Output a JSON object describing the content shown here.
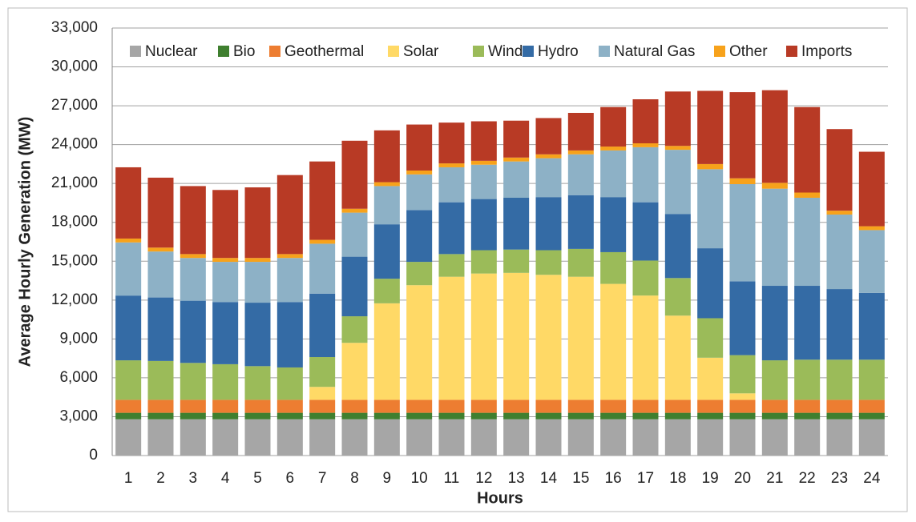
{
  "chart_data": {
    "type": "stacked_bar",
    "x_label": "Hours",
    "y_label": "Average Hourly Generation (MW)",
    "categories": [
      "1",
      "2",
      "3",
      "4",
      "5",
      "6",
      "7",
      "8",
      "9",
      "10",
      "11",
      "12",
      "13",
      "14",
      "15",
      "16",
      "17",
      "18",
      "19",
      "20",
      "21",
      "22",
      "23",
      "24"
    ],
    "ylim": [
      0,
      33000
    ],
    "yticks": [
      0,
      {
        "value": 3000,
        "label": "3,000"
      },
      {
        "value": 6000,
        "label": "6,000"
      },
      {
        "value": 9000,
        "label": "9,000"
      },
      {
        "value": 12000,
        "label": "12,000"
      },
      {
        "value": 15000,
        "label": "15,000"
      },
      {
        "value": 18000,
        "label": "18,000"
      },
      {
        "value": 21000,
        "label": "21,000"
      },
      {
        "value": 24000,
        "label": "24,000"
      },
      {
        "value": 27000,
        "label": "27,000"
      },
      {
        "value": 30000,
        "label": "30,000"
      },
      {
        "value": 33000,
        "label": "33,000"
      }
    ],
    "grid": true,
    "legend": "top",
    "series": [
      {
        "name": "Nuclear",
        "color": "#a6a6a6",
        "values": [
          2800,
          2800,
          2800,
          2800,
          2800,
          2800,
          2800,
          2800,
          2800,
          2800,
          2800,
          2800,
          2800,
          2800,
          2800,
          2800,
          2800,
          2800,
          2800,
          2800,
          2800,
          2800,
          2800,
          2800
        ]
      },
      {
        "name": "Bio",
        "color": "#3f7f2f",
        "values": [
          500,
          500,
          500,
          500,
          500,
          500,
          500,
          500,
          500,
          500,
          500,
          500,
          500,
          500,
          500,
          500,
          500,
          500,
          500,
          500,
          500,
          500,
          500,
          500
        ]
      },
      {
        "name": "Geothermal",
        "color": "#ed7d31",
        "values": [
          1000,
          1000,
          1000,
          1000,
          1000,
          1000,
          1000,
          1000,
          1000,
          1000,
          1000,
          1000,
          1000,
          1000,
          1000,
          1000,
          1000,
          1000,
          1000,
          1000,
          1000,
          1000,
          1000,
          1000
        ]
      },
      {
        "name": "Solar",
        "color": "#ffd966",
        "values": [
          0,
          0,
          0,
          0,
          0,
          0,
          1000,
          4400,
          7450,
          8850,
          9500,
          9750,
          9800,
          9650,
          9500,
          8950,
          8050,
          6500,
          3250,
          500,
          0,
          0,
          0,
          0
        ]
      },
      {
        "name": "Wind",
        "color": "#9bbb59",
        "values": [
          3050,
          3000,
          2850,
          2750,
          2600,
          2500,
          2300,
          2050,
          1900,
          1800,
          1750,
          1800,
          1800,
          1900,
          2150,
          2450,
          2700,
          2900,
          3050,
          2950,
          3050,
          3100,
          3100,
          3100
        ]
      },
      {
        "name": "Hydro",
        "color": "#346ba5",
        "values": [
          5000,
          4900,
          4800,
          4800,
          4900,
          5050,
          4900,
          4600,
          4200,
          4000,
          4000,
          3950,
          4000,
          4100,
          4150,
          4250,
          4500,
          4950,
          5400,
          5700,
          5750,
          5700,
          5450,
          5150
        ]
      },
      {
        "name": "Natural Gas",
        "color": "#8db1c6",
        "values": [
          4100,
          3550,
          3300,
          3100,
          3150,
          3400,
          3850,
          3400,
          2950,
          2750,
          2700,
          2650,
          2800,
          3000,
          3150,
          3600,
          4250,
          4950,
          6100,
          7500,
          7500,
          6800,
          5750,
          4850
        ]
      },
      {
        "name": "Other",
        "color": "#f7a21b",
        "values": [
          300,
          300,
          300,
          300,
          300,
          300,
          300,
          300,
          300,
          300,
          300,
          300,
          300,
          300,
          300,
          300,
          300,
          300,
          400,
          450,
          450,
          400,
          300,
          300
        ]
      },
      {
        "name": "Imports",
        "color": "#b83a25",
        "values": [
          5500,
          5400,
          5250,
          5250,
          5450,
          6100,
          6050,
          5250,
          4000,
          3550,
          3150,
          3050,
          2850,
          2800,
          2900,
          3050,
          3400,
          4200,
          5650,
          6650,
          7150,
          6600,
          6300,
          5750
        ]
      }
    ]
  }
}
